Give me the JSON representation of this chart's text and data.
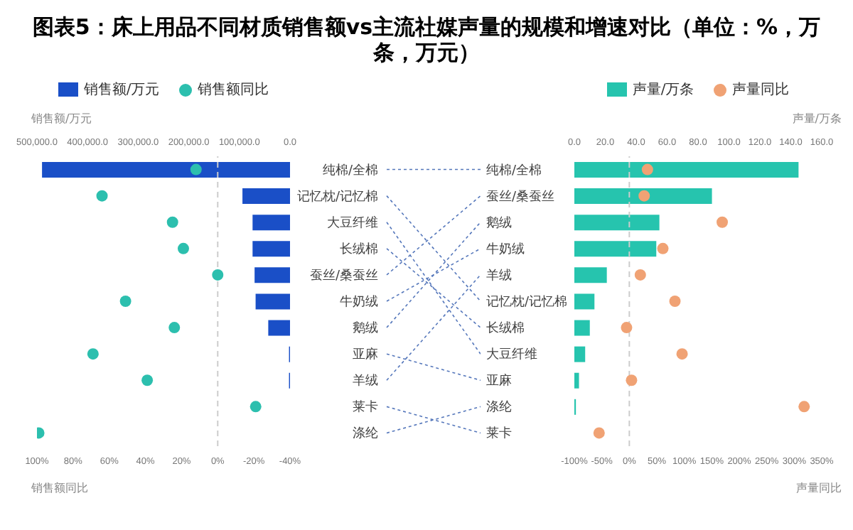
{
  "chart_data": [
    {
      "type": "bar",
      "orientation": "horizontal",
      "title": "图表5：床上用品不同材质销售额vs主流社媒声量的规模和增速对比（单位：%，万条，万元）",
      "x2label": "销售额/万元",
      "xlabel": "销售额同比",
      "legend": "top",
      "categories": [
        "纯棉/全棉",
        "记忆枕/记忆棉",
        "大豆纤维",
        "长绒棉",
        "蚕丝/桑蚕丝",
        "牛奶绒",
        "鹅绒",
        "亚麻",
        "羊绒",
        "莱卡",
        "涤纶"
      ],
      "series": [
        {
          "name": "销售额/万元",
          "type": "bar",
          "axis": "x2",
          "color": "#1a4fc7",
          "values": [
            490000,
            94000,
            74000,
            74000,
            70000,
            68000,
            43000,
            2000,
            2000,
            0,
            0
          ]
        },
        {
          "name": "销售额同比",
          "type": "scatter",
          "color": "#2cbfae",
          "values": [
            12,
            64,
            25,
            19,
            0,
            51,
            24,
            69,
            39,
            -21,
            99
          ]
        }
      ],
      "x2lim": [
        500000,
        0
      ],
      "x2ticks": [
        {
          "value": 500000,
          "label": "500,000.0"
        },
        {
          "value": 400000,
          "label": "400,000.0"
        },
        {
          "value": 300000,
          "label": "300,000.0"
        },
        {
          "value": 200000,
          "label": "200,000.0"
        },
        {
          "value": 100000,
          "label": "100,000.0"
        },
        {
          "value": 0,
          "label": "0.0"
        }
      ],
      "xlim": [
        100,
        -40
      ],
      "xticks": [
        {
          "value": 100,
          "label": "100%"
        },
        {
          "value": 80,
          "label": "80%"
        },
        {
          "value": 60,
          "label": "60%"
        },
        {
          "value": 40,
          "label": "40%"
        },
        {
          "value": 20,
          "label": "20%"
        },
        {
          "value": 0,
          "label": "0%"
        },
        {
          "value": -20,
          "label": "-20%"
        },
        {
          "value": -40,
          "label": "-40%"
        }
      ],
      "ref_lines": [
        {
          "axis": "x",
          "value": 0,
          "color": "#cccccc",
          "line_style": "dashed"
        }
      ]
    },
    {
      "type": "bar",
      "orientation": "horizontal",
      "x2label": "声量/万条",
      "xlabel": "声量同比",
      "legend": "top",
      "categories": [
        "纯棉/全棉",
        "蚕丝/桑蚕丝",
        "鹅绒",
        "牛奶绒",
        "羊绒",
        "记忆枕/记忆棉",
        "长绒棉",
        "大豆纤维",
        "亚麻",
        "涤纶",
        "莱卡"
      ],
      "series": [
        {
          "name": "声量/万条",
          "type": "bar",
          "axis": "x2",
          "color": "#26c4ae",
          "values": [
            145,
            89,
            55,
            53,
            21,
            13,
            10,
            7,
            3,
            1,
            0
          ]
        },
        {
          "name": "声量同比",
          "type": "scatter",
          "color": "#f0a274",
          "values": [
            33,
            27,
            169,
            61,
            20,
            83,
            -5,
            96,
            4,
            318,
            -55
          ]
        }
      ],
      "x2lim": [
        0,
        160
      ],
      "x2ticks": [
        {
          "value": 0,
          "label": "0.0"
        },
        {
          "value": 20,
          "label": "20.0"
        },
        {
          "value": 40,
          "label": "40.0"
        },
        {
          "value": 60,
          "label": "60.0"
        },
        {
          "value": 80,
          "label": "80.0"
        },
        {
          "value": 100,
          "label": "100.0"
        },
        {
          "value": 120,
          "label": "120.0"
        },
        {
          "value": 140,
          "label": "140.0"
        },
        {
          "value": 160,
          "label": "160.0"
        }
      ],
      "xlim": [
        -100,
        350
      ],
      "xticks": [
        {
          "value": -100,
          "label": "-100%"
        },
        {
          "value": -50,
          "label": "-50%"
        },
        {
          "value": 0,
          "label": "0%"
        },
        {
          "value": 50,
          "label": "50%"
        },
        {
          "value": 100,
          "label": "100%"
        },
        {
          "value": 150,
          "label": "150%"
        },
        {
          "value": 200,
          "label": "200%"
        },
        {
          "value": 250,
          "label": "250%"
        },
        {
          "value": 300,
          "label": "300%"
        },
        {
          "value": 350,
          "label": "350%"
        }
      ],
      "ref_lines": [
        {
          "axis": "x",
          "value": 0,
          "color": "#cccccc",
          "line_style": "dashed"
        }
      ]
    }
  ]
}
